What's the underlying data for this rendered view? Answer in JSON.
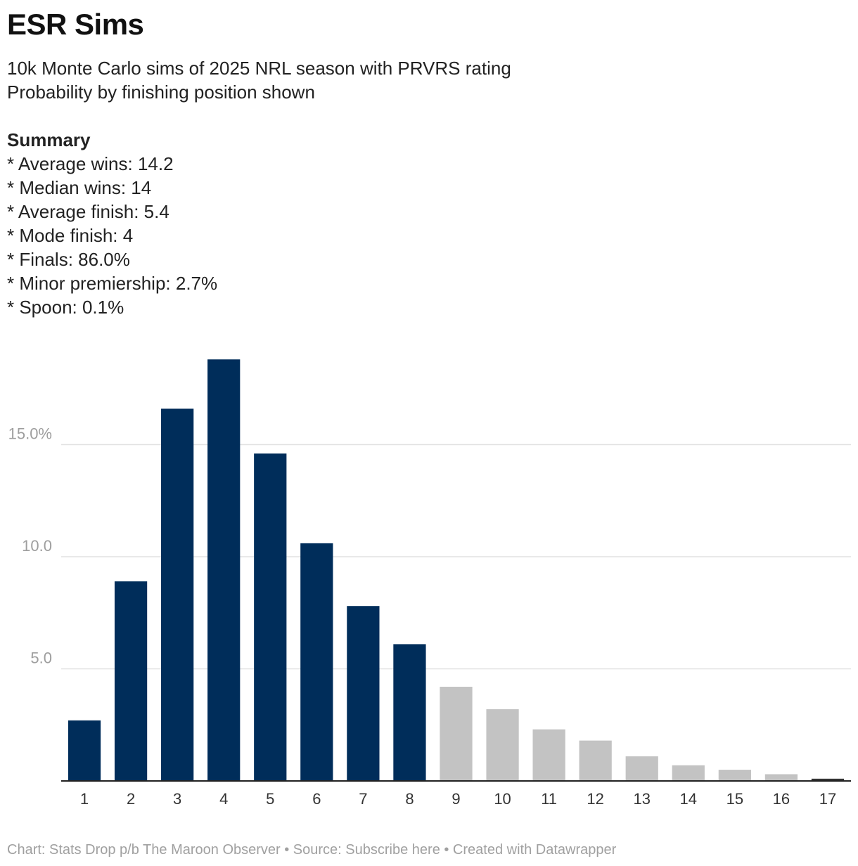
{
  "header": {
    "title": "ESR Sims",
    "description_lines": [
      "10k Monte Carlo sims of 2025 NRL season with PRVRS rating",
      "Probability by finishing position shown"
    ],
    "summary_heading": "Summary",
    "summary_items": [
      "* Average wins: 14.2",
      "* Median wins: 14",
      "* Average finish: 5.4",
      "* Mode finish: 4",
      "* Finals: 86.0%",
      "* Minor premiership: 2.7%",
      "* Spoon: 0.1%"
    ]
  },
  "chart_data": {
    "type": "bar",
    "categories": [
      "1",
      "2",
      "3",
      "4",
      "5",
      "6",
      "7",
      "8",
      "9",
      "10",
      "11",
      "12",
      "13",
      "14",
      "15",
      "16",
      "17"
    ],
    "values": [
      2.7,
      8.9,
      16.6,
      18.8,
      14.6,
      10.6,
      7.8,
      6.1,
      4.2,
      3.2,
      2.3,
      1.8,
      1.1,
      0.7,
      0.5,
      0.3,
      0.1
    ],
    "bar_colors": [
      "#002d5a",
      "#002d5a",
      "#002d5a",
      "#002d5a",
      "#002d5a",
      "#002d5a",
      "#002d5a",
      "#002d5a",
      "#c3c3c3",
      "#c3c3c3",
      "#c3c3c3",
      "#c3c3c3",
      "#c3c3c3",
      "#c3c3c3",
      "#c3c3c3",
      "#c3c3c3",
      "#333333"
    ],
    "ylim": [
      0,
      20
    ],
    "y_ticks": [
      {
        "value": 5,
        "label": "5.0"
      },
      {
        "value": 10,
        "label": "10.0"
      },
      {
        "value": 15,
        "label": "15.0%"
      }
    ],
    "grid": true,
    "xlabel": "",
    "ylabel": ""
  },
  "colors": {
    "finals_bar": "#002d5a",
    "other_bar": "#c3c3c3",
    "last_bar": "#333333",
    "gridline": "#e2e2e2",
    "axis": "#222222"
  },
  "footer": {
    "text": "Chart: Stats Drop p/b The Maroon Observer • Source: Subscribe here • Created with Datawrapper"
  }
}
